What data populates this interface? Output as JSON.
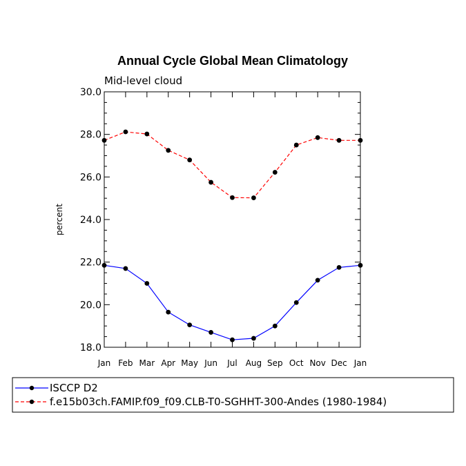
{
  "chart_data": {
    "type": "line",
    "title": "Annual Cycle Global Mean Climatology",
    "subtitle": "Mid-level cloud",
    "xlabel": "",
    "ylabel": "percent",
    "ylim": [
      18.0,
      30.0
    ],
    "yticks": [
      "18.0",
      "20.0",
      "22.0",
      "24.0",
      "26.0",
      "28.0",
      "30.0"
    ],
    "categories": [
      "Jan",
      "Feb",
      "Mar",
      "Apr",
      "May",
      "Jun",
      "Jul",
      "Aug",
      "Sep",
      "Oct",
      "Nov",
      "Dec",
      "Jan"
    ],
    "series": [
      {
        "name": "ISCCP D2",
        "color": "#0000ff",
        "style": "solid",
        "values": [
          21.85,
          21.7,
          21.0,
          19.65,
          19.05,
          18.7,
          18.35,
          18.42,
          19.0,
          20.1,
          21.15,
          21.75,
          21.85
        ]
      },
      {
        "name": "f.e15b03ch.FAMIP.f09_f09.CLB-T0-SGHHT-300-Andes (1980-1984)",
        "color": "#ff0000",
        "style": "dashed",
        "values": [
          27.72,
          28.12,
          28.02,
          27.25,
          26.8,
          25.75,
          25.03,
          25.02,
          26.22,
          27.5,
          27.85,
          27.72,
          27.72
        ]
      }
    ]
  }
}
